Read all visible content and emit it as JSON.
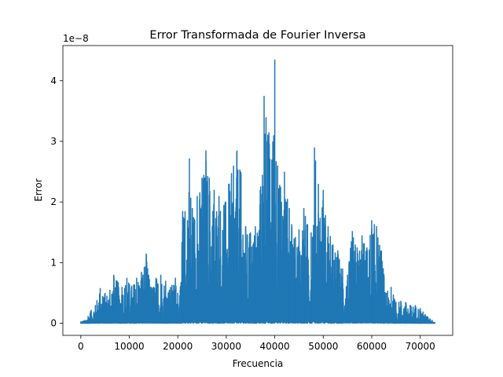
{
  "chart_data": {
    "type": "line",
    "title": "Error Transformada de Fourier Inversa",
    "xlabel": "Frecuencia",
    "ylabel": "Error",
    "offset_text": "1e−8",
    "xlim": [
      -3700,
      76700
    ],
    "ylim": [
      -0.2,
      4.58
    ],
    "x_ticks": [
      0,
      10000,
      20000,
      30000,
      40000,
      50000,
      60000,
      70000
    ],
    "y_ticks": [
      0,
      1,
      2,
      3,
      4
    ],
    "grid": false,
    "legend": "none",
    "series": [
      {
        "color": "#1f77b4",
        "x_range": [
          0,
          73000
        ],
        "envelope": {
          "x": [
            0,
            1000,
            1500,
            2000,
            3000,
            4000,
            4500,
            5000,
            6000,
            6800,
            7500,
            8500,
            9500,
            10500,
            11500,
            12500,
            13500,
            14000,
            14500,
            15500,
            16500,
            17500,
            18500,
            19500,
            20000,
            20500,
            21000,
            21500,
            22000,
            22400,
            23000,
            24000,
            25000,
            25800,
            26500,
            27500,
            28500,
            29500,
            30500,
            31500,
            32200,
            33000,
            34000,
            35000,
            36000,
            37000,
            37800,
            38200,
            38800,
            39400,
            40000,
            40600,
            41200,
            42000,
            43000,
            44000,
            45000,
            46000,
            47500,
            48200,
            49000,
            50000,
            51000,
            52000,
            53000,
            54000,
            55000,
            56000,
            57000,
            58000,
            59000,
            60000,
            61000,
            62000,
            63000,
            64000,
            65000,
            66000,
            67000,
            68000,
            69000,
            70000,
            71000,
            72000,
            73000
          ],
          "peak": [
            0.03,
            0.05,
            0.12,
            0.2,
            0.3,
            0.58,
            0.45,
            0.5,
            0.55,
            0.8,
            0.7,
            0.6,
            0.75,
            0.62,
            0.75,
            0.85,
            1.15,
            0.8,
            0.6,
            0.75,
            0.8,
            0.7,
            0.6,
            0.75,
            0.5,
            0.55,
            1.85,
            1.85,
            1.7,
            2.72,
            1.9,
            2.1,
            2.4,
            2.85,
            2.4,
            2.2,
            2.1,
            1.95,
            2.3,
            2.6,
            2.85,
            2.5,
            1.6,
            1.5,
            1.6,
            2.2,
            3.75,
            3.4,
            3.15,
            2.7,
            4.35,
            2.6,
            2.25,
            2.5,
            1.9,
            1.4,
            1.55,
            1.9,
            1.5,
            2.9,
            2.3,
            2.2,
            1.6,
            1.3,
            1.2,
            0.9,
            0.8,
            1.52,
            1.25,
            1.45,
            1.25,
            1.7,
            1.6,
            1.2,
            0.5,
            0.6,
            0.35,
            0.37,
            0.35,
            0.3,
            0.3,
            0.25,
            0.15,
            0.08,
            0.02
          ]
        }
      }
    ]
  }
}
